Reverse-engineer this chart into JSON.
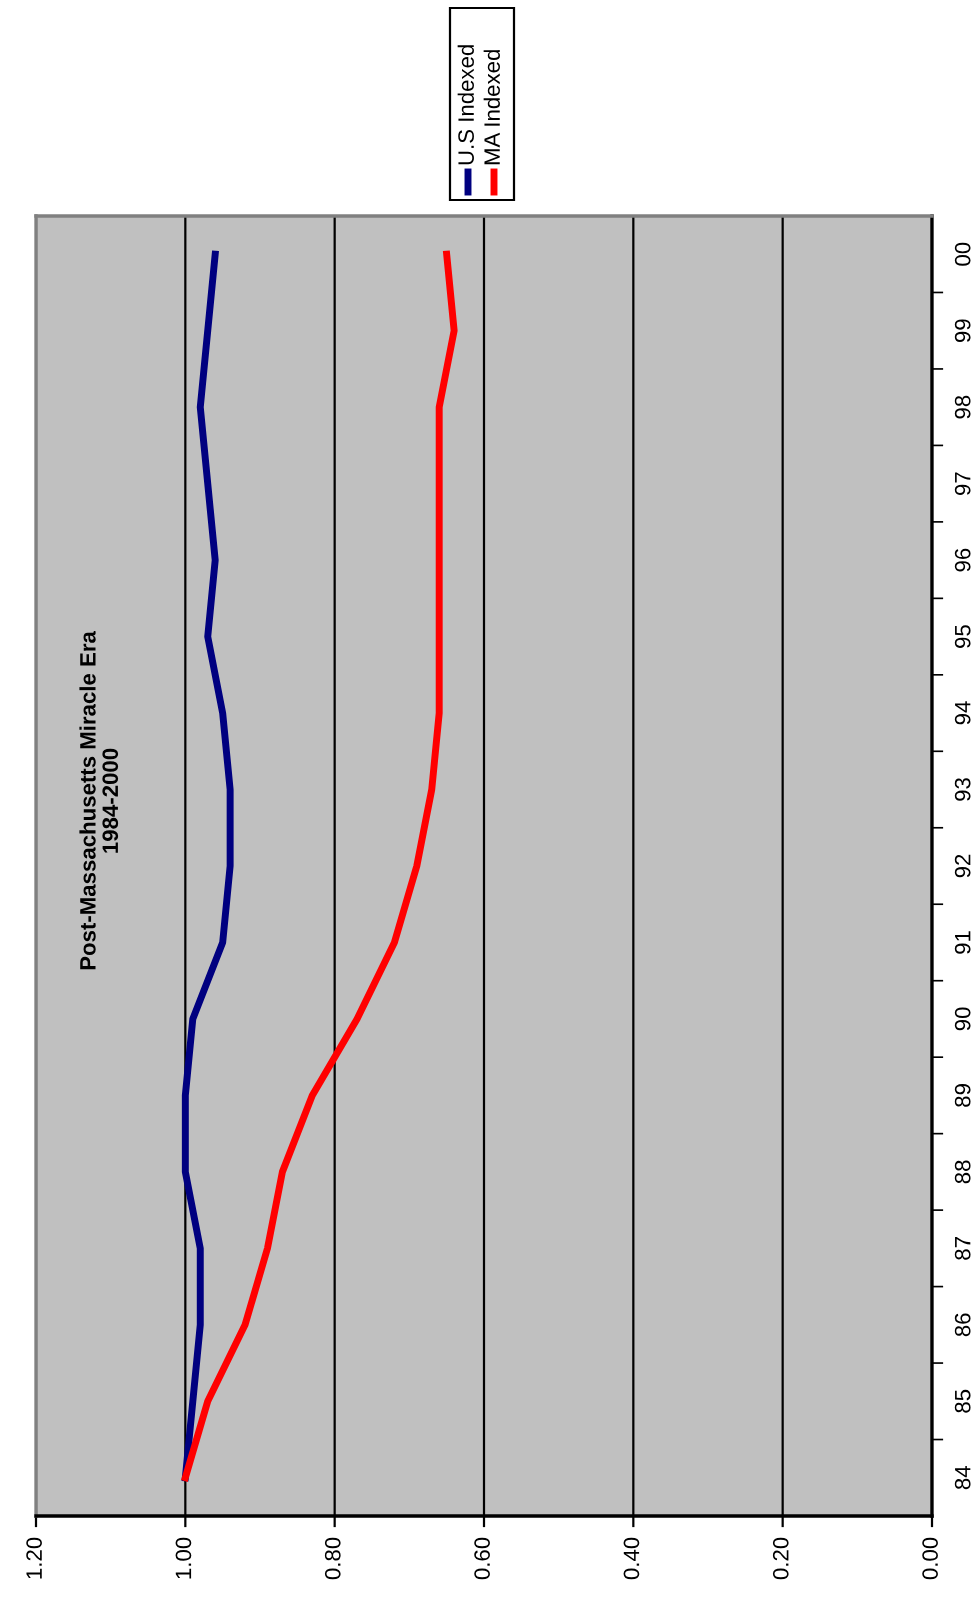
{
  "chart_data": {
    "type": "line",
    "orientation": "horizontal",
    "title": "Post-Massachusetts Miracle Era",
    "subtitle": "1984-2000",
    "categories": [
      "00",
      "99",
      "98",
      "97",
      "96",
      "95",
      "94",
      "93",
      "92",
      "91",
      "90",
      "89",
      "88",
      "87",
      "86",
      "85",
      "84"
    ],
    "series": [
      {
        "name": "U.S Indexed",
        "color": "#000080",
        "values": [
          0.96,
          0.97,
          0.98,
          0.97,
          0.96,
          0.97,
          0.95,
          0.94,
          0.94,
          0.95,
          0.99,
          1.0,
          1.0,
          0.98,
          0.98,
          0.99,
          1.0
        ]
      },
      {
        "name": "MA Indexed",
        "color": "#ff0000",
        "values": [
          0.65,
          0.64,
          0.66,
          0.66,
          0.66,
          0.66,
          0.66,
          0.67,
          0.69,
          0.72,
          0.77,
          0.83,
          0.87,
          0.89,
          0.92,
          0.97,
          1.0
        ]
      }
    ],
    "xlim": [
      1.2,
      0.0
    ],
    "xticks": [
      {
        "value": 1.2,
        "label": "1.20"
      },
      {
        "value": 1.0,
        "label": "1.00"
      },
      {
        "value": 0.8,
        "label": "0.80"
      },
      {
        "value": 0.6,
        "label": "0.60"
      },
      {
        "value": 0.4,
        "label": "0.40"
      },
      {
        "value": 0.2,
        "label": "0.20"
      },
      {
        "value": 0.0,
        "label": "0.00"
      }
    ],
    "grid": "x",
    "legend": "top right",
    "marker": "none",
    "line_style": "solid"
  }
}
